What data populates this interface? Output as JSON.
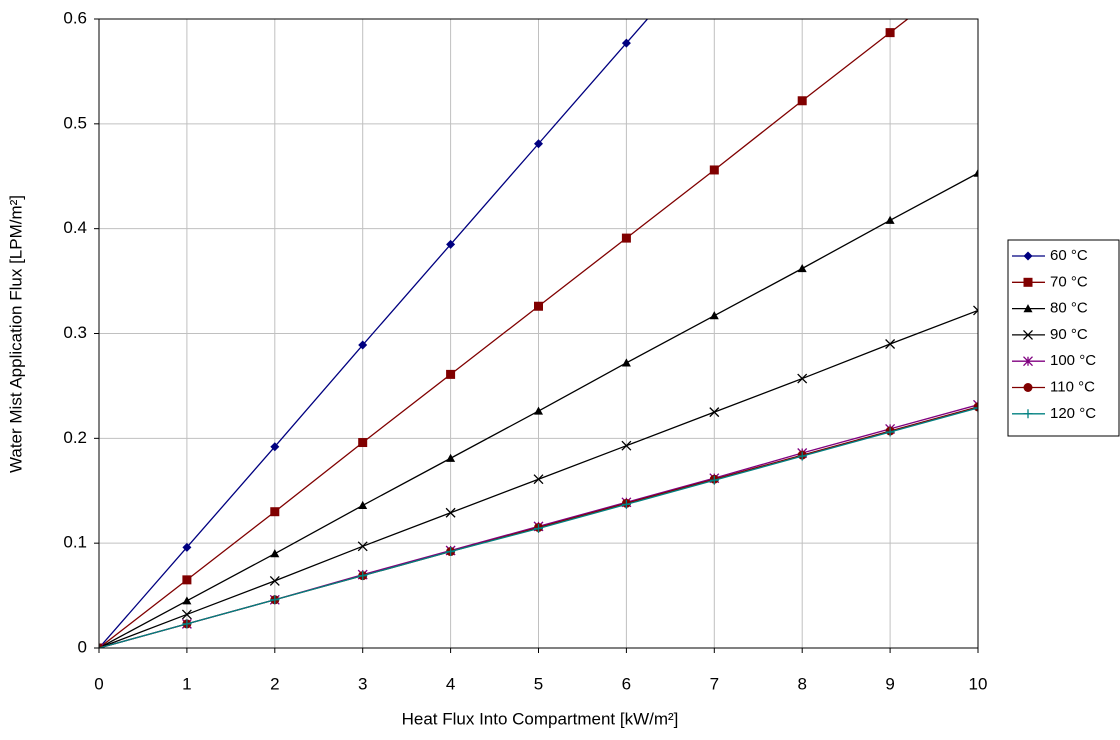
{
  "chart_data": {
    "type": "line",
    "x_label": "Heat Flux Into Compartment [kW/m²]",
    "y_label": "Water Mist Application Flux [LPM/m²]",
    "x": [
      0,
      1,
      2,
      3,
      4,
      5,
      6,
      7,
      8,
      9,
      10
    ],
    "xlim": [
      0,
      10
    ],
    "xticks": [
      0,
      1,
      2,
      3,
      4,
      5,
      6,
      7,
      8,
      9,
      10
    ],
    "ylim": [
      0,
      0.6
    ],
    "yticks": [
      0,
      0.1,
      0.2,
      0.3,
      0.4,
      0.5,
      0.6
    ],
    "grid": true,
    "legend": "right",
    "series": [
      {
        "name": "60 °C",
        "color": "#000080",
        "marker": "diamond",
        "values": [
          0,
          0.096,
          0.192,
          0.289,
          0.385,
          0.481,
          0.577,
          0.673,
          null,
          null,
          null
        ]
      },
      {
        "name": "70 °C",
        "color": "#800000",
        "marker": "square",
        "values": [
          0,
          0.065,
          0.13,
          0.196,
          0.261,
          0.326,
          0.391,
          0.456,
          0.522,
          0.587,
          0.652
        ]
      },
      {
        "name": "80 °C",
        "color": "#000000",
        "marker": "triangle",
        "values": [
          0,
          0.045,
          0.09,
          0.136,
          0.181,
          0.226,
          0.272,
          0.317,
          0.362,
          0.408,
          0.453
        ]
      },
      {
        "name": "90 °C",
        "color": "#000000",
        "marker": "x",
        "values": [
          0,
          0.032,
          0.064,
          0.097,
          0.129,
          0.161,
          0.193,
          0.225,
          0.257,
          0.29,
          0.322
        ]
      },
      {
        "name": "100 °C",
        "color": "#800080",
        "marker": "star",
        "values": [
          0,
          0.023,
          0.046,
          0.07,
          0.093,
          0.116,
          0.139,
          0.162,
          0.186,
          0.209,
          0.232
        ]
      },
      {
        "name": "110 °C",
        "color": "#800000",
        "marker": "circle",
        "values": [
          0,
          0.023,
          0.046,
          0.069,
          0.092,
          0.115,
          0.138,
          0.161,
          0.184,
          0.207,
          0.23
        ]
      },
      {
        "name": "120 °C",
        "color": "#008080",
        "marker": "plus",
        "values": [
          0,
          0.023,
          0.046,
          0.069,
          0.092,
          0.114,
          0.137,
          0.16,
          0.183,
          0.206,
          0.229
        ]
      }
    ]
  }
}
